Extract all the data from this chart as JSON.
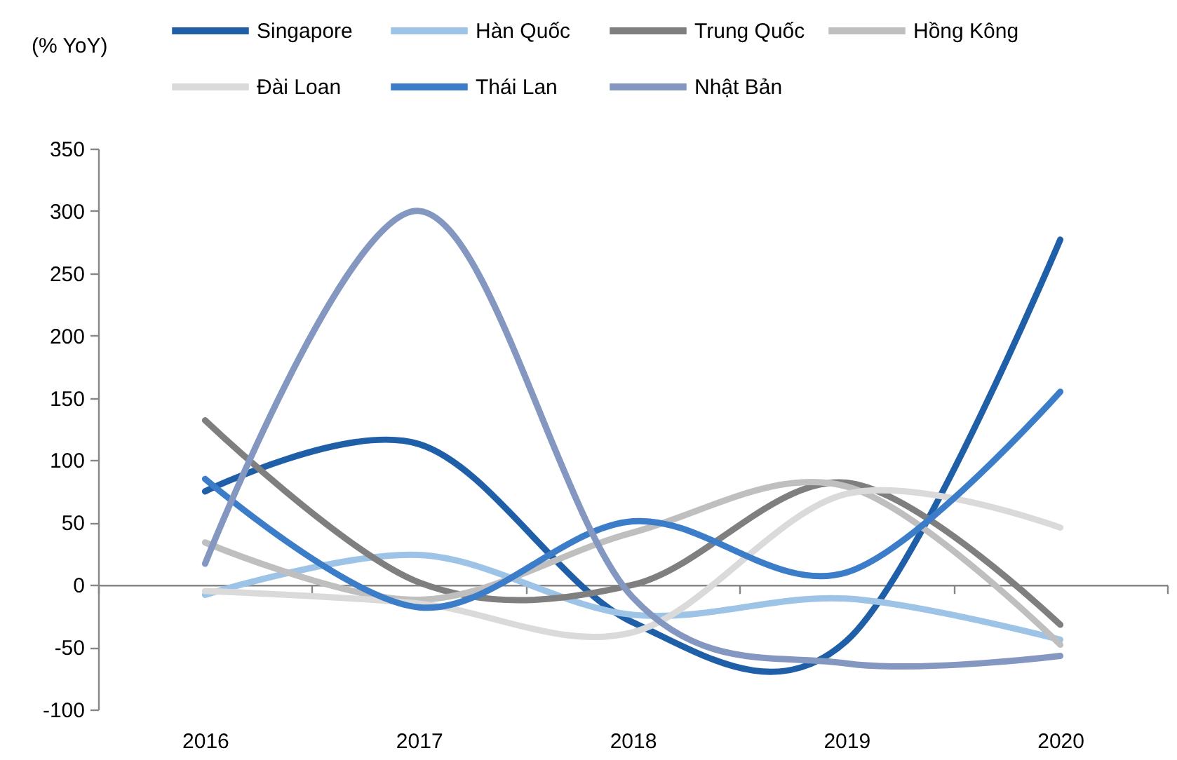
{
  "chart_data": {
    "type": "line",
    "ylabel": "(% YoY)",
    "categories": [
      "2016",
      "2017",
      "2018",
      "2019",
      "2020"
    ],
    "series": [
      {
        "name": "Singapore",
        "color": "#1f5fa8",
        "values": [
          75,
          113,
          -30,
          -45,
          277
        ]
      },
      {
        "name": "Hàn Quốc",
        "color": "#9dc3e6",
        "values": [
          -8,
          24,
          -24,
          -11,
          -44
        ]
      },
      {
        "name": "Trung Quốc",
        "color": "#7f7f7f",
        "values": [
          132,
          2,
          0,
          82,
          -32
        ]
      },
      {
        "name": "Hồng Kông",
        "color": "#bfbfbf",
        "values": [
          34,
          -12,
          42,
          79,
          -48
        ]
      },
      {
        "name": "Đài Loan",
        "color": "#dadada",
        "values": [
          -5,
          -15,
          -38,
          73,
          46
        ]
      },
      {
        "name": "Thái Lan",
        "color": "#3b7dc8",
        "values": [
          85,
          -18,
          51,
          10,
          155
        ]
      },
      {
        "name": "Nhật Bản",
        "color": "#8497c1",
        "values": [
          17,
          300,
          -10,
          -63,
          -57
        ]
      }
    ],
    "ylim": [
      -100,
      350
    ],
    "yticks": [
      -100,
      -50,
      0,
      50,
      100,
      150,
      200,
      250,
      300,
      350
    ],
    "legend": "top",
    "line_style": "solid"
  }
}
